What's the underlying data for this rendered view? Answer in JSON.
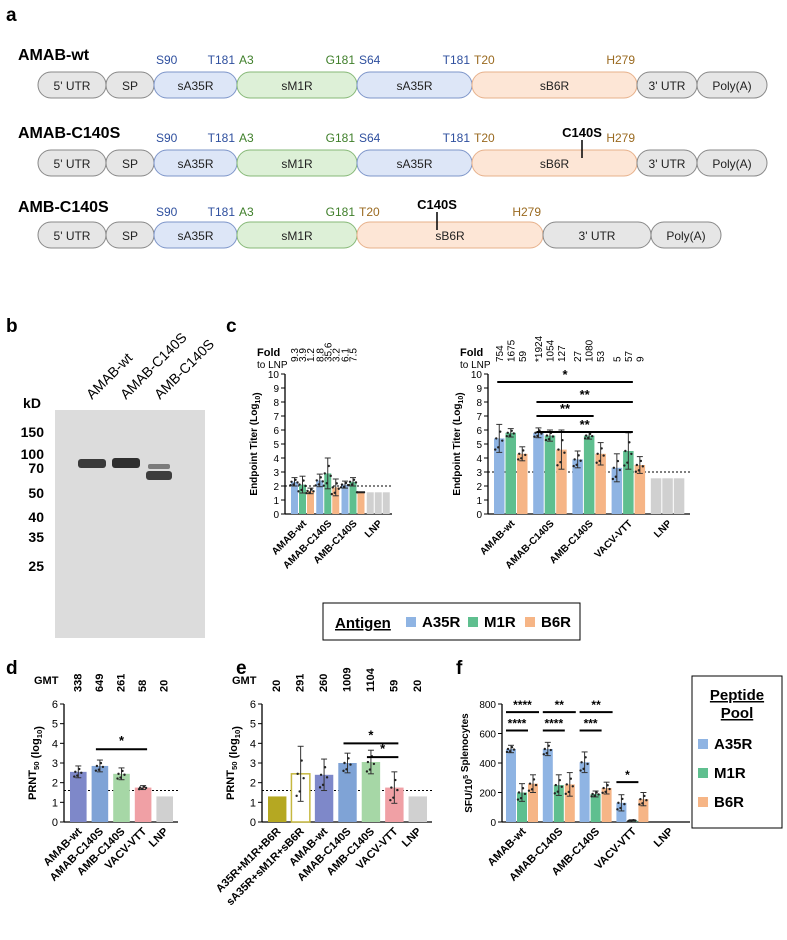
{
  "panel_labels": {
    "a": "a",
    "b": "b",
    "c": "c",
    "d": "d",
    "e": "e",
    "f": "f"
  },
  "colors": {
    "A35R": "#8fb4e3",
    "M1R": "#5fbf8f",
    "B6R": "#f6b586",
    "LNP": "#d0d0d0",
    "d_AMAB_wt": "#7e88c9",
    "d_AMAB_C140S": "#7fa3d6",
    "d_AMB_C140S": "#a6d7a6",
    "d_VACV_VTT": "#f0a0a5",
    "e_mix": "#b5a822",
    "e_mix_outline": "#c6b840",
    "significance": "#000000"
  },
  "constructs": [
    {
      "name": "AMAB-wt",
      "mutation": "",
      "segments": [
        "5' UTR",
        "SP",
        "sA35R",
        "sM1R",
        "sA35R",
        "sB6R",
        "3' UTR",
        "Poly(A)"
      ],
      "residues": [
        "S90",
        "T181",
        "A3",
        "G181",
        "S64",
        "T181",
        "T20",
        "H279"
      ]
    },
    {
      "name": "AMAB-C140S",
      "mutation": "C140S",
      "segments": [
        "5' UTR",
        "SP",
        "sA35R",
        "sM1R",
        "sA35R",
        "sB6R",
        "3' UTR",
        "Poly(A)"
      ],
      "residues": [
        "S90",
        "T181",
        "A3",
        "G181",
        "S64",
        "T181",
        "T20",
        "H279"
      ]
    },
    {
      "name": "AMB-C140S",
      "mutation": "C140S",
      "segments": [
        "5' UTR",
        "SP",
        "sA35R",
        "sM1R",
        "sB6R",
        "3' UTR",
        "Poly(A)"
      ],
      "residues": [
        "S90",
        "T181",
        "A3",
        "G181",
        "T20",
        "H279"
      ]
    }
  ],
  "western_blot": {
    "lanes": [
      "AMAB-wt",
      "AMAB-C140S",
      "AMB-C140S"
    ],
    "unit": "kD",
    "markers": [
      "150",
      "100",
      "70",
      "50",
      "40",
      "35",
      "25"
    ]
  },
  "legend": {
    "title": "Antigen",
    "entries": [
      "A35R",
      "M1R",
      "B6R"
    ]
  },
  "peptide_legend": {
    "title_line1": "Peptide",
    "title_line2": "Pool",
    "entries": [
      "A35R",
      "M1R",
      "B6R"
    ]
  },
  "chart_data": [
    {
      "id": "c_left",
      "type": "bar",
      "title": "",
      "fold_label_line1": "Fold",
      "fold_label_line2": "to LNP",
      "ylabel": "Endpoint Titer (Log10)",
      "ylabel_main": "Endpoint Titer (Log",
      "ylabel_sub": "10",
      "ylabel_end": ")",
      "ylim": [
        0,
        10
      ],
      "yticks": [
        "0",
        "1",
        "2",
        "3",
        "4",
        "5",
        "6",
        "7",
        "8",
        "9",
        "10"
      ],
      "threshold": 2.0,
      "categories": [
        "AMAB-wt",
        "AMAB-C140S",
        "AMB-C140S",
        "LNP"
      ],
      "series": [
        {
          "name": "A35R",
          "values": [
            2.3,
            2.4,
            2.1,
            1.55
          ],
          "errors": [
            0.3,
            0.45,
            0.25,
            0
          ],
          "fold": [
            "9.3",
            "8.8",
            "6.1",
            ""
          ]
        },
        {
          "name": "M1R",
          "values": [
            2.1,
            2.9,
            2.3,
            1.55
          ],
          "errors": [
            0.6,
            1.1,
            0.3,
            0
          ],
          "fold": [
            "3.9",
            "35.6",
            "7.5",
            ""
          ]
        },
        {
          "name": "B6R",
          "values": [
            1.65,
            1.9,
            1.55,
            1.55
          ],
          "errors": [
            0.2,
            0.6,
            0,
            0
          ],
          "fold": [
            "1.2",
            "3.2",
            "",
            ""
          ]
        }
      ],
      "significance": []
    },
    {
      "id": "c_right",
      "type": "bar",
      "title": "",
      "fold_label_line1": "Fold",
      "fold_label_line2": "to LNP",
      "ylabel": "Endpoint Titer (Log10)",
      "ylabel_main": "Endpoint Titer (Log",
      "ylabel_sub": "10",
      "ylabel_end": ")",
      "ylim": [
        0,
        10
      ],
      "yticks": [
        "0",
        "1",
        "2",
        "3",
        "4",
        "5",
        "6",
        "7",
        "8",
        "9",
        "10"
      ],
      "threshold": 3.0,
      "categories": [
        "AMAB-wt",
        "AMAB-C140S",
        "AMB-C140S",
        "VACV-VTT",
        "LNP"
      ],
      "series": [
        {
          "name": "A35R",
          "values": [
            5.4,
            5.8,
            3.9,
            3.3,
            2.55
          ],
          "errors": [
            1.0,
            0.35,
            0.6,
            1.0,
            0
          ],
          "fold": [
            "754",
            "*1924",
            "27",
            "5",
            ""
          ]
        },
        {
          "name": "M1R",
          "values": [
            5.8,
            5.6,
            5.6,
            4.5,
            2.55
          ],
          "errors": [
            0.3,
            0.4,
            0.25,
            1.3,
            0
          ],
          "fold": [
            "1675",
            "1054",
            "1080",
            "57",
            ""
          ]
        },
        {
          "name": "B6R",
          "values": [
            4.3,
            4.6,
            4.3,
            3.5,
            2.55
          ],
          "errors": [
            0.5,
            1.4,
            0.8,
            0.6,
            0
          ],
          "fold": [
            "59",
            "127",
            "53",
            "9",
            ""
          ]
        }
      ],
      "significance": [
        {
          "from": 0,
          "to": 3,
          "label": "*",
          "level": 7.0
        },
        {
          "from": 1,
          "to": 3,
          "label": "**",
          "level": 6.2
        },
        {
          "from": 1,
          "to": 2,
          "label": "**",
          "level": 7.6
        },
        {
          "from": 1,
          "to": 3,
          "label": "**",
          "level": 6.1
        }
      ]
    },
    {
      "id": "d",
      "type": "bar",
      "title": "",
      "top_label": "GMT",
      "ylabel": "PRNT50 (log10)",
      "ylabel_main": "PRNT",
      "ylabel_sub": "50",
      "ylabel_end": " (log",
      "ylabel_sub2": "10",
      "ylabel_end2": ")",
      "ylim": [
        0,
        6
      ],
      "yticks": [
        "0",
        "1",
        "2",
        "3",
        "4",
        "5",
        "6"
      ],
      "threshold": 1.6,
      "categories": [
        "AMAB-wt",
        "AMAB-C140S",
        "AMB-C140S",
        "VACV-VTT",
        "LNP"
      ],
      "values": [
        2.55,
        2.85,
        2.45,
        1.75,
        1.3
      ],
      "errors": [
        0.3,
        0.3,
        0.3,
        0.1,
        0
      ],
      "gmt": [
        "338",
        "649",
        "261",
        "58",
        "20"
      ],
      "significance": [
        {
          "from": 1,
          "to": 3,
          "label": "*",
          "level": 3.7
        }
      ]
    },
    {
      "id": "e",
      "type": "bar",
      "title": "",
      "top_label": "GMT",
      "ylabel": "PRNT50 (log10)",
      "ylabel_main": "PRNT",
      "ylabel_sub": "50",
      "ylabel_end": " (log",
      "ylabel_sub2": "10",
      "ylabel_end2": ")",
      "ylim": [
        0,
        6
      ],
      "yticks": [
        "0",
        "1",
        "2",
        "3",
        "4",
        "5",
        "6"
      ],
      "threshold": 1.6,
      "categories": [
        "A35R+M1R+B6R",
        "sA35R+sM1R+sB6R",
        "AMAB-wt",
        "AMAB-C140S",
        "AMB-C140S",
        "VACV-VTT",
        "LNP"
      ],
      "values": [
        1.3,
        2.45,
        2.4,
        3.0,
        3.05,
        1.75,
        1.3
      ],
      "errors": [
        0,
        1.4,
        0.8,
        0.5,
        0.6,
        0.8,
        0
      ],
      "gmt": [
        "20",
        "291",
        "260",
        "1009",
        "1104",
        "59",
        "20"
      ],
      "significance": [
        {
          "from": 3,
          "to": 5,
          "label": "*",
          "level": 4.0
        },
        {
          "from": 4,
          "to": 5,
          "label": "*",
          "level": 3.3
        }
      ]
    },
    {
      "id": "f",
      "type": "bar",
      "title": "",
      "ylabel": "SFU/10^5 Splenocytes",
      "ylabel_main": "SFU/10",
      "ylabel_sup": "5",
      "ylabel_end": " Splenocytes",
      "ylim": [
        0,
        800
      ],
      "yticks": [
        "0",
        "200",
        "400",
        "600",
        "800"
      ],
      "categories": [
        "AMAB-wt",
        "AMAB-C140S",
        "AMB-C140S",
        "VACV-VTT",
        "LNP"
      ],
      "series": [
        {
          "name": "A35R",
          "values": [
            495,
            495,
            405,
            130,
            0
          ],
          "errors": [
            25,
            45,
            70,
            55,
            0
          ]
        },
        {
          "name": "M1R",
          "values": [
            200,
            250,
            190,
            10,
            0
          ],
          "errors": [
            60,
            70,
            20,
            5,
            0
          ]
        },
        {
          "name": "B6R",
          "values": [
            260,
            255,
            230,
            155,
            0
          ],
          "errors": [
            60,
            80,
            40,
            45,
            0
          ]
        }
      ],
      "significance": [
        {
          "group": 0,
          "from": 0,
          "to": 2,
          "label": "****",
          "level": 745
        },
        {
          "group": 0,
          "from": 0,
          "to": 1,
          "label": "****",
          "level": 620
        },
        {
          "group": 1,
          "from": 0,
          "to": 2,
          "label": "**",
          "level": 745
        },
        {
          "group": 1,
          "from": 0,
          "to": 1,
          "label": "****",
          "level": 620
        },
        {
          "group": 2,
          "from": 0,
          "to": 2,
          "label": "**",
          "level": 745
        },
        {
          "group": 2,
          "from": 0,
          "to": 1,
          "label": "***",
          "level": 620
        },
        {
          "group": 3,
          "from": 0,
          "to": 1,
          "label": "*",
          "level": 270
        }
      ]
    }
  ]
}
